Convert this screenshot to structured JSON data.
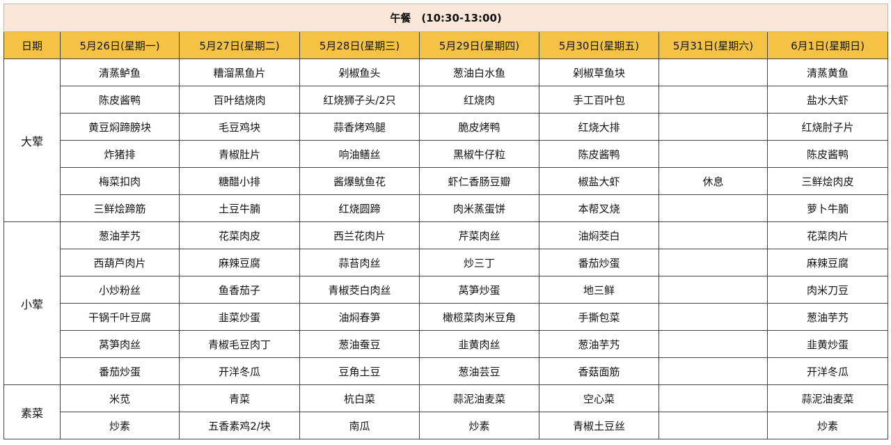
{
  "title": "午餐　(10:30-13:00)",
  "colors": {
    "title_bg": "#fbe7da",
    "header_bg": "#f4c343"
  },
  "headers": [
    "日期",
    "5月26日(星期一)",
    "5月27日(星期二)",
    "5月28日(星期三)",
    "5月29日(星期四)",
    "5月30日(星期五)",
    "5月31日(星期六)",
    "6月1日(星期日)"
  ],
  "groups": [
    {
      "name": "大荤",
      "rows": [
        [
          "清蒸鲈鱼",
          "糟溜黑鱼片",
          "剁椒鱼头",
          "葱油白水鱼",
          "剁椒草鱼块",
          "",
          "清蒸黄鱼"
        ],
        [
          "陈皮酱鸭",
          "百叶结烧肉",
          "红烧狮子头/2只",
          "红烧肉",
          "手工百叶包",
          "",
          "盐水大虾"
        ],
        [
          "黄豆焖蹄膀块",
          "毛豆鸡块",
          "蒜香烤鸡腿",
          "脆皮烤鸭",
          "红烧大排",
          "",
          "红烧肘子片"
        ],
        [
          "炸猪排",
          "青椒肚片",
          "响油鳝丝",
          "黑椒牛仔粒",
          "陈皮酱鸭",
          "",
          "陈皮酱鸭"
        ],
        [
          "梅菜扣肉",
          "糖醋小排",
          "酱爆鱿鱼花",
          "虾仁香肠豆瓣",
          "椒盐大虾",
          "休息",
          "三鲜烩肉皮"
        ],
        [
          "三鲜烩蹄筋",
          "土豆牛腩",
          "红烧圆蹄",
          "肉米蒸蛋饼",
          "本帮叉烧",
          "",
          "萝卜牛腩"
        ]
      ]
    },
    {
      "name": "小荤",
      "rows": [
        [
          "葱油芋艿",
          "花菜肉皮",
          "西兰花肉片",
          "芹菜肉丝",
          "油焖茭白",
          "",
          "花菜肉片"
        ],
        [
          "西葫芦肉片",
          "麻辣豆腐",
          "蒜苔肉丝",
          "炒三丁",
          "番茄炒蛋",
          "",
          "麻辣豆腐"
        ],
        [
          "小炒粉丝",
          "鱼香茄子",
          "青椒茭白肉丝",
          "莴笋炒蛋",
          "地三鲜",
          "",
          "肉米刀豆"
        ],
        [
          "干锅千叶豆腐",
          "韭菜炒蛋",
          "油焖春笋",
          "橄榄菜肉米豆角",
          "手撕包菜",
          "",
          "葱油芋艿"
        ],
        [
          "莴笋肉丝",
          "青椒毛豆肉丁",
          "葱油蚕豆",
          "韭黄肉丝",
          "葱油芋艿",
          "",
          "韭黄炒蛋"
        ],
        [
          "番茄炒蛋",
          "开洋冬瓜",
          "豆角土豆",
          "葱油芸豆",
          "香菇面筋",
          "",
          "开洋冬瓜"
        ]
      ]
    },
    {
      "name": "素菜",
      "rows": [
        [
          "米苋",
          "青菜",
          "杭白菜",
          "蒜泥油麦菜",
          "空心菜",
          "",
          "蒜泥油麦菜"
        ],
        [
          "炒素",
          "五香素鸡2/块",
          "南瓜",
          "炒素",
          "青椒土豆丝",
          "",
          "炒素"
        ]
      ]
    }
  ]
}
